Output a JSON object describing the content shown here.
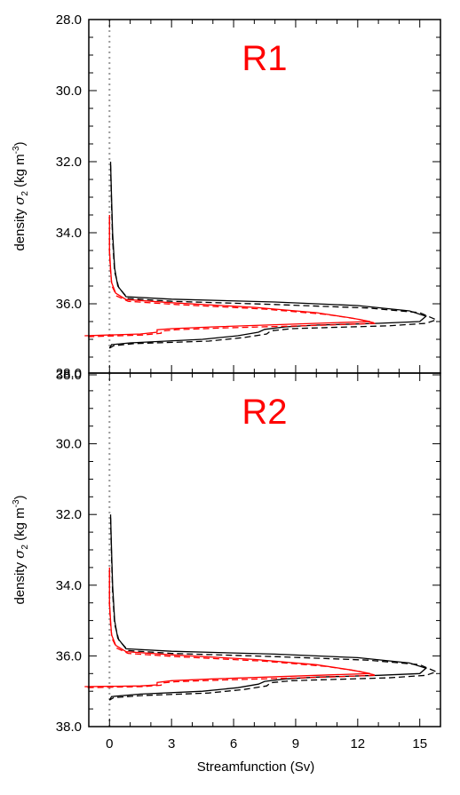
{
  "chart_data": [
    {
      "type": "line",
      "panel_label": "R1",
      "ylabel": "density σ₂ (kg m⁻³)",
      "xlabel": "",
      "xlim": [
        -1,
        16
      ],
      "ylim": [
        37.9,
        28.0
      ],
      "yticks": [
        "28.0",
        "30.0",
        "32.0",
        "34.0",
        "36.0",
        "38.0"
      ],
      "reference_line_x": 0,
      "series": [
        {
          "color": "#000000",
          "dash": "solid",
          "points": [
            [
              0.05,
              32.0
            ],
            [
              0.1,
              33.0
            ],
            [
              0.15,
              34.0
            ],
            [
              0.25,
              35.0
            ],
            [
              0.4,
              35.5
            ],
            [
              0.8,
              35.8
            ],
            [
              3,
              35.87
            ],
            [
              8,
              35.95
            ],
            [
              12,
              36.05
            ],
            [
              14.5,
              36.2
            ],
            [
              15.3,
              36.35
            ],
            [
              15.0,
              36.5
            ],
            [
              13,
              36.55
            ],
            [
              10,
              36.6
            ],
            [
              8.5,
              36.65
            ],
            [
              7.5,
              36.72
            ],
            [
              7.2,
              36.8
            ],
            [
              6.2,
              36.9
            ],
            [
              4.5,
              37.0
            ],
            [
              1.0,
              37.1
            ],
            [
              0.1,
              37.15
            ],
            [
              0.0,
              37.25
            ]
          ]
        },
        {
          "color": "#000000",
          "dash": "dashed",
          "points": [
            [
              0.05,
              32.1
            ],
            [
              0.1,
              33.2
            ],
            [
              0.15,
              34.2
            ],
            [
              0.25,
              35.1
            ],
            [
              0.45,
              35.55
            ],
            [
              0.9,
              35.85
            ],
            [
              3,
              35.93
            ],
            [
              8,
              36.02
            ],
            [
              12.5,
              36.12
            ],
            [
              15.0,
              36.25
            ],
            [
              15.8,
              36.45
            ],
            [
              15.3,
              36.55
            ],
            [
              13.5,
              36.62
            ],
            [
              10.5,
              36.67
            ],
            [
              8.8,
              36.7
            ],
            [
              7.8,
              36.76
            ],
            [
              7.6,
              36.85
            ],
            [
              6.5,
              36.95
            ],
            [
              4.8,
              37.05
            ],
            [
              1.2,
              37.12
            ],
            [
              0.2,
              37.18
            ],
            [
              0.0,
              37.25
            ]
          ]
        },
        {
          "color": "#ff0000",
          "dash": "solid",
          "points": [
            [
              0.0,
              33.5
            ],
            [
              0.0,
              34.5
            ],
            [
              0.05,
              35.0
            ],
            [
              0.1,
              35.4
            ],
            [
              0.3,
              35.7
            ],
            [
              0.8,
              35.88
            ],
            [
              3,
              35.97
            ],
            [
              7,
              36.1
            ],
            [
              10,
              36.25
            ],
            [
              11.7,
              36.4
            ],
            [
              12.6,
              36.5
            ],
            [
              10,
              36.55
            ],
            [
              7.5,
              36.6
            ],
            [
              5,
              36.65
            ],
            [
              3.0,
              36.7
            ],
            [
              2.3,
              36.73
            ],
            [
              2.3,
              36.8
            ],
            [
              1.5,
              36.85
            ],
            [
              -1.2,
              36.9
            ]
          ]
        },
        {
          "color": "#ff0000",
          "dash": "dashed",
          "points": [
            [
              0.0,
              33.6
            ],
            [
              0.0,
              34.6
            ],
            [
              0.05,
              35.1
            ],
            [
              0.12,
              35.5
            ],
            [
              0.35,
              35.78
            ],
            [
              0.9,
              35.93
            ],
            [
              3.2,
              36.02
            ],
            [
              7.5,
              36.15
            ],
            [
              10.5,
              36.3
            ],
            [
              12.0,
              36.43
            ],
            [
              12.9,
              36.55
            ],
            [
              10.5,
              36.6
            ],
            [
              8,
              36.64
            ],
            [
              5.5,
              36.68
            ],
            [
              3.2,
              36.73
            ],
            [
              2.5,
              36.77
            ],
            [
              2.5,
              36.83
            ],
            [
              1.6,
              36.88
            ],
            [
              -1.2,
              36.93
            ]
          ]
        }
      ]
    },
    {
      "type": "line",
      "panel_label": "R2",
      "ylabel": "density σ₂ (kg m⁻³)",
      "xlabel": "Streamfunction (Sv)",
      "xlim": [
        -1,
        16
      ],
      "ylim": [
        38.0,
        28.0
      ],
      "xticks": [
        "0",
        "3",
        "6",
        "9",
        "12",
        "15"
      ],
      "yticks": [
        "28.0",
        "30.0",
        "32.0",
        "34.0",
        "36.0",
        "38.0"
      ],
      "reference_line_x": 0,
      "series": [
        {
          "color": "#000000",
          "dash": "solid",
          "points": [
            [
              0.05,
              32.0
            ],
            [
              0.1,
              33.0
            ],
            [
              0.15,
              34.0
            ],
            [
              0.25,
              35.0
            ],
            [
              0.4,
              35.5
            ],
            [
              0.8,
              35.8
            ],
            [
              3,
              35.87
            ],
            [
              8,
              35.95
            ],
            [
              12,
              36.05
            ],
            [
              14.5,
              36.2
            ],
            [
              15.3,
              36.35
            ],
            [
              15.0,
              36.5
            ],
            [
              13,
              36.55
            ],
            [
              10,
              36.6
            ],
            [
              8.5,
              36.65
            ],
            [
              7.5,
              36.72
            ],
            [
              7.2,
              36.8
            ],
            [
              6.2,
              36.9
            ],
            [
              4.5,
              37.0
            ],
            [
              1.5,
              37.08
            ],
            [
              0.1,
              37.15
            ],
            [
              0.0,
              37.25
            ]
          ]
        },
        {
          "color": "#000000",
          "dash": "dashed",
          "points": [
            [
              0.05,
              32.1
            ],
            [
              0.1,
              33.2
            ],
            [
              0.15,
              34.2
            ],
            [
              0.25,
              35.1
            ],
            [
              0.45,
              35.55
            ],
            [
              0.9,
              35.85
            ],
            [
              3,
              35.93
            ],
            [
              8,
              36.02
            ],
            [
              12.5,
              36.12
            ],
            [
              15.0,
              36.25
            ],
            [
              15.8,
              36.45
            ],
            [
              15.3,
              36.55
            ],
            [
              13.5,
              36.62
            ],
            [
              10.5,
              36.67
            ],
            [
              8.8,
              36.7
            ],
            [
              7.8,
              36.76
            ],
            [
              7.6,
              36.85
            ],
            [
              6.5,
              36.95
            ],
            [
              4.8,
              37.05
            ],
            [
              1.6,
              37.12
            ],
            [
              0.2,
              37.18
            ],
            [
              0.0,
              37.25
            ]
          ]
        },
        {
          "color": "#ff0000",
          "dash": "solid",
          "points": [
            [
              0.0,
              33.5
            ],
            [
              0.0,
              34.5
            ],
            [
              0.05,
              35.0
            ],
            [
              0.1,
              35.4
            ],
            [
              0.3,
              35.7
            ],
            [
              0.8,
              35.88
            ],
            [
              3,
              35.97
            ],
            [
              7,
              36.1
            ],
            [
              10,
              36.25
            ],
            [
              11.7,
              36.4
            ],
            [
              12.6,
              36.5
            ],
            [
              10,
              36.55
            ],
            [
              7.5,
              36.6
            ],
            [
              5,
              36.65
            ],
            [
              3.0,
              36.7
            ],
            [
              2.3,
              36.75
            ],
            [
              2.3,
              36.82
            ],
            [
              1.5,
              36.85
            ],
            [
              -1.2,
              36.87
            ]
          ]
        },
        {
          "color": "#ff0000",
          "dash": "dashed",
          "points": [
            [
              0.0,
              33.6
            ],
            [
              0.0,
              34.6
            ],
            [
              0.05,
              35.1
            ],
            [
              0.12,
              35.5
            ],
            [
              0.35,
              35.78
            ],
            [
              0.9,
              35.93
            ],
            [
              3.2,
              36.02
            ],
            [
              7.5,
              36.15
            ],
            [
              10.5,
              36.3
            ],
            [
              12.0,
              36.43
            ],
            [
              12.9,
              36.55
            ],
            [
              10.5,
              36.6
            ],
            [
              8,
              36.64
            ],
            [
              5.5,
              36.68
            ],
            [
              3.2,
              36.73
            ],
            [
              2.5,
              36.77
            ],
            [
              2.5,
              36.83
            ],
            [
              1.6,
              36.87
            ],
            [
              -1.2,
              36.9
            ]
          ]
        }
      ]
    }
  ],
  "colors": {
    "reference_line": "#999999",
    "panel_label": "#ff0000"
  }
}
